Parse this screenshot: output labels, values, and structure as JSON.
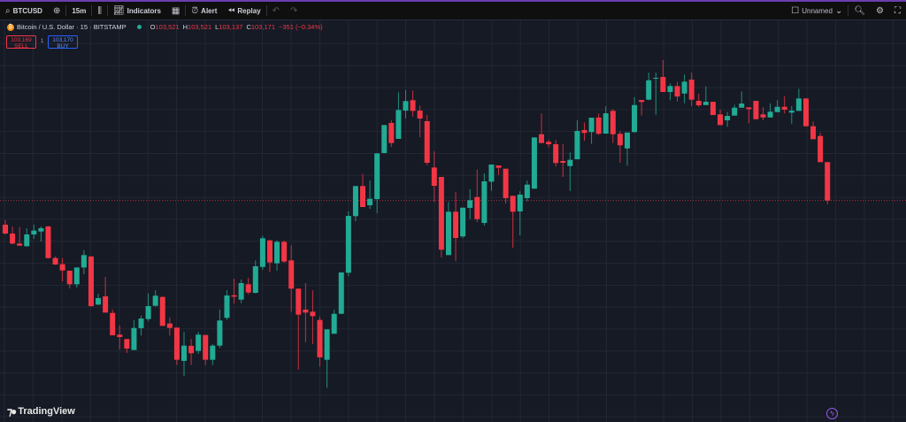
{
  "toolbar": {
    "symbol": "BTCUSD",
    "interval": "15m",
    "indicators_label": "Indicators",
    "alert_label": "Alert",
    "replay_label": "Replay",
    "layout_name": "Unnamed"
  },
  "legend": {
    "title": "Bitcoin / U.S. Dollar · 15 · BITSTAMP",
    "o_label": "O",
    "o": "103,521",
    "h_label": "H",
    "h": "103,521",
    "l_label": "L",
    "l": "103,137",
    "c_label": "C",
    "c": "103,171",
    "change": "−351 (−0.34%)",
    "sell_price": "103,169",
    "sell_label": "SELL",
    "buy_price": "103,170",
    "buy_label": "BUY",
    "spread": "1"
  },
  "branding": {
    "logo_text": "TradingView"
  },
  "colors": {
    "up": "#22ab94",
    "down": "#f23645",
    "background": "#161a25",
    "grid": "#232733",
    "last_price_line": "#f23645"
  },
  "chart_data": {
    "type": "candlestick",
    "symbol": "BTCUSD",
    "interval": "15",
    "price_range": [
      101153,
      104692
    ],
    "grid": true,
    "last_price": 103171,
    "candles": [
      [
        102951,
        102991,
        102862,
        102870
      ],
      [
        102870,
        102935,
        102773,
        102779
      ],
      [
        102779,
        102929,
        102757,
        102760
      ],
      [
        102755,
        102919,
        102749,
        102862
      ],
      [
        102862,
        102951,
        102822,
        102897
      ],
      [
        102889,
        102935,
        102798,
        102919
      ],
      [
        102935,
        102940,
        102642,
        102647
      ],
      [
        102647,
        102661,
        102586,
        102588
      ],
      [
        102591,
        102647,
        102435,
        102534
      ],
      [
        102532,
        102532,
        102370,
        102408
      ],
      [
        102408,
        102561,
        102378,
        102561
      ],
      [
        102561,
        102719,
        102499,
        102674
      ],
      [
        102661,
        102666,
        102204,
        102209
      ],
      [
        102223,
        102322,
        102217,
        102282
      ],
      [
        102298,
        102475,
        102150,
        102150
      ],
      [
        102147,
        102177,
        101943,
        101943
      ],
      [
        101949,
        102032,
        101814,
        101927
      ],
      [
        101909,
        101909,
        101782,
        101822
      ],
      [
        101809,
        102083,
        101809,
        102010
      ],
      [
        102008,
        102123,
        101941,
        102096
      ],
      [
        102091,
        102324,
        102070,
        102209
      ],
      [
        102212,
        102354,
        102204,
        102304
      ],
      [
        102292,
        102298,
        102029,
        102029
      ],
      [
        102051,
        102104,
        101941,
        102010
      ],
      [
        102013,
        102013,
        101672,
        101720
      ],
      [
        101710,
        101975,
        101572,
        101849
      ],
      [
        101847,
        101909,
        101672,
        101780
      ],
      [
        101801,
        101975,
        101774,
        101949
      ],
      [
        101946,
        101946,
        101672,
        101720
      ],
      [
        101720,
        101863,
        101672,
        101849
      ],
      [
        101849,
        102177,
        101828,
        102078
      ],
      [
        102102,
        102354,
        102083,
        102306
      ],
      [
        102308,
        102459,
        102231,
        102295
      ],
      [
        102268,
        102451,
        102236,
        102419
      ],
      [
        102408,
        102467,
        102316,
        102333
      ],
      [
        102330,
        102626,
        102324,
        102572
      ],
      [
        102566,
        102848,
        102540,
        102827
      ],
      [
        102808,
        102814,
        102518,
        102607
      ],
      [
        102599,
        102808,
        102532,
        102795
      ],
      [
        102795,
        102808,
        102604,
        102615
      ],
      [
        102626,
        102765,
        102158,
        102368
      ],
      [
        102368,
        102368,
        101631,
        102131
      ],
      [
        102177,
        102419,
        101881,
        102150
      ],
      [
        102158,
        102352,
        101863,
        102118
      ],
      [
        102083,
        102115,
        101659,
        101742
      ],
      [
        101720,
        101997,
        101465,
        101997
      ],
      [
        101957,
        102177,
        101957,
        102139
      ],
      [
        102139,
        102516,
        102137,
        102516
      ],
      [
        102513,
        103072,
        102481,
        103031
      ],
      [
        103029,
        103303,
        102983,
        103303
      ],
      [
        103303,
        103413,
        103112,
        103112
      ],
      [
        103128,
        103354,
        103096,
        103187
      ],
      [
        103184,
        103601,
        103056,
        103601
      ],
      [
        103604,
        103859,
        103601,
        103859
      ],
      [
        103878,
        103904,
        103660,
        103695
      ],
      [
        103733,
        104157,
        103733,
        103996
      ],
      [
        103990,
        104178,
        103918,
        104077
      ],
      [
        104085,
        104173,
        103936,
        103988
      ],
      [
        103990,
        104036,
        103749,
        103918
      ],
      [
        103894,
        103950,
        103493,
        103515
      ],
      [
        103472,
        103620,
        103158,
        103305
      ],
      [
        103386,
        103386,
        102653,
        102723
      ],
      [
        102674,
        103158,
        102674,
        103069
      ],
      [
        103069,
        103251,
        102620,
        102830
      ],
      [
        102844,
        103106,
        102830,
        103106
      ],
      [
        103104,
        103273,
        103002,
        103174
      ],
      [
        103203,
        103453,
        102975,
        103002
      ],
      [
        102967,
        103418,
        102943,
        103346
      ],
      [
        103343,
        103499,
        103259,
        103499
      ],
      [
        103491,
        103491,
        103405,
        103469
      ],
      [
        103461,
        103461,
        103144,
        103193
      ],
      [
        103214,
        103214,
        102741,
        103069
      ],
      [
        103072,
        103255,
        102854,
        103225
      ],
      [
        103193,
        103354,
        103163,
        103316
      ],
      [
        103279,
        103746,
        103279,
        103746
      ],
      [
        103775,
        103964,
        103695,
        103695
      ],
      [
        103706,
        103722,
        103658,
        103684
      ],
      [
        103684,
        103722,
        103480,
        103513
      ],
      [
        103531,
        103684,
        103386,
        103515
      ],
      [
        103485,
        103609,
        103259,
        103542
      ],
      [
        103547,
        103902,
        103547,
        103805
      ],
      [
        103813,
        103883,
        103716,
        103787
      ],
      [
        103795,
        103926,
        103687,
        103926
      ],
      [
        103928,
        103964,
        103770,
        103779
      ],
      [
        103781,
        104031,
        103781,
        103966
      ],
      [
        103988,
        104004,
        103695,
        103775
      ],
      [
        103779,
        103803,
        103515,
        103674
      ],
      [
        103646,
        103791,
        103488,
        103791
      ],
      [
        103795,
        104111,
        103789,
        104041
      ],
      [
        104087,
        104087,
        103945,
        104069
      ],
      [
        104090,
        104337,
        104085,
        104267
      ],
      [
        104281,
        104337,
        103953,
        104289
      ],
      [
        104297,
        104450,
        104160,
        104160
      ],
      [
        104160,
        104238,
        104085,
        104214
      ],
      [
        104214,
        104251,
        104074,
        104119
      ],
      [
        104146,
        104319,
        104057,
        104254
      ],
      [
        104273,
        104337,
        104031,
        104090
      ],
      [
        104079,
        104144,
        104023,
        104039
      ],
      [
        104041,
        104211,
        104041,
        104071
      ],
      [
        104071,
        104071,
        103950,
        103950
      ],
      [
        103956,
        103999,
        103859,
        103859
      ],
      [
        103902,
        103977,
        103843,
        103942
      ],
      [
        103945,
        104044,
        103945,
        104017
      ],
      [
        104017,
        104165,
        104017,
        104055
      ],
      [
        104020,
        104020,
        103875,
        104004
      ],
      [
        104079,
        104079,
        103912,
        103912
      ],
      [
        103956,
        104023,
        103902,
        103928
      ],
      [
        103928,
        104055,
        103928,
        103980
      ],
      [
        103977,
        104085,
        103977,
        104025
      ],
      [
        104025,
        104122,
        103964,
        103999
      ],
      [
        103972,
        104031,
        103870,
        103990
      ],
      [
        103988,
        104190,
        103988,
        104101
      ],
      [
        104101,
        104101,
        103848,
        103848
      ],
      [
        103848,
        103891,
        103730,
        103730
      ],
      [
        103759,
        103789,
        103521,
        103521
      ],
      [
        103521,
        103521,
        103137,
        103171
      ]
    ]
  }
}
